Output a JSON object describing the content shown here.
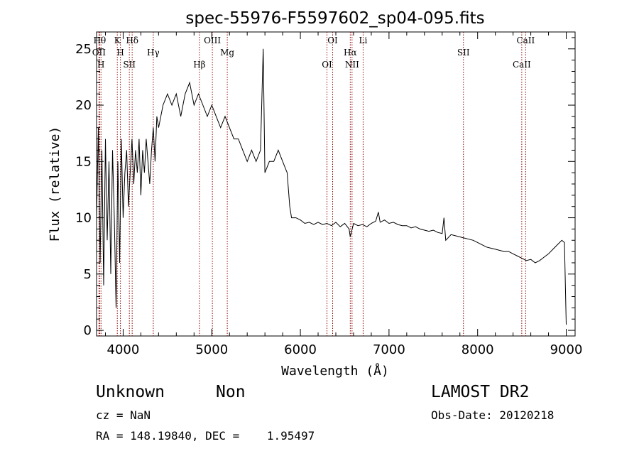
{
  "chart_data": {
    "type": "line",
    "title": "spec-55976-F5597602_sp04-095.fits",
    "xlabel": "Wavelength (Å)",
    "ylabel": "Flux (relative)",
    "xlim": [
      3700,
      9100
    ],
    "ylim": [
      -0.5,
      26.5
    ],
    "x_ticks": [
      4000,
      5000,
      6000,
      7000,
      8000,
      9000
    ],
    "y_ticks": [
      0,
      5,
      10,
      15,
      20,
      25
    ],
    "grid": false,
    "legend": "none",
    "line_color": "#000000",
    "marker_color": "#8b0000",
    "series": [
      {
        "x": [
          3700,
          3720,
          3740,
          3760,
          3780,
          3800,
          3820,
          3840,
          3860,
          3880,
          3900,
          3920,
          3940,
          3960,
          3980,
          4000,
          4020,
          4040,
          4060,
          4080,
          4100,
          4120,
          4140,
          4160,
          4180,
          4200,
          4220,
          4240,
          4260,
          4280,
          4300,
          4320,
          4340,
          4360,
          4380,
          4400,
          4450,
          4500,
          4550,
          4600,
          4650,
          4700,
          4750,
          4800,
          4850,
          4900,
          4950,
          5000,
          5050,
          5100,
          5150,
          5200,
          5250,
          5300,
          5350,
          5400,
          5450,
          5500,
          5550,
          5580,
          5600,
          5650,
          5700,
          5750,
          5800,
          5850,
          5880,
          5900,
          5950,
          6000,
          6050,
          6100,
          6150,
          6200,
          6250,
          6300,
          6350,
          6400,
          6450,
          6500,
          6550,
          6563,
          6600,
          6650,
          6700,
          6750,
          6800,
          6850,
          6880,
          6900,
          6950,
          7000,
          7050,
          7100,
          7150,
          7200,
          7250,
          7300,
          7350,
          7400,
          7450,
          7500,
          7550,
          7600,
          7620,
          7640,
          7700,
          7750,
          7800,
          7850,
          7900,
          7950,
          8000,
          8050,
          8100,
          8150,
          8200,
          8250,
          8300,
          8350,
          8400,
          8450,
          8500,
          8550,
          8600,
          8650,
          8700,
          8750,
          8800,
          8850,
          8900,
          8950,
          8980,
          9000
        ],
        "y": [
          10,
          18,
          6,
          16,
          4,
          17,
          8,
          15,
          5,
          16,
          10,
          2,
          15,
          6,
          17,
          10,
          14,
          16,
          11,
          14,
          17,
          13,
          16,
          14,
          17,
          12,
          16,
          14,
          17,
          15,
          13,
          16,
          18,
          15,
          19,
          18,
          20,
          21,
          20,
          21,
          19,
          21,
          22,
          20,
          21,
          20,
          19,
          20,
          19,
          18,
          19,
          18,
          17,
          17,
          16,
          15,
          16,
          15,
          16,
          25,
          14,
          15,
          15,
          16,
          15,
          14,
          11,
          10,
          10,
          9.8,
          9.5,
          9.6,
          9.4,
          9.6,
          9.4,
          9.5,
          9.3,
          9.6,
          9.2,
          9.5,
          9.0,
          8.3,
          9.5,
          9.3,
          9.4,
          9.2,
          9.5,
          9.7,
          10.5,
          9.6,
          9.8,
          9.5,
          9.6,
          9.4,
          9.3,
          9.3,
          9.1,
          9.2,
          9.0,
          8.9,
          8.8,
          8.9,
          8.7,
          8.6,
          10.0,
          8.0,
          8.5,
          8.4,
          8.3,
          8.2,
          8.1,
          8.0,
          7.8,
          7.6,
          7.4,
          7.3,
          7.2,
          7.1,
          7.0,
          7.0,
          6.8,
          6.6,
          6.4,
          6.2,
          6.3,
          6.0,
          6.2,
          6.5,
          6.8,
          7.2,
          7.6,
          8.0,
          7.8,
          0.5
        ]
      }
    ],
    "lines": [
      {
        "x": 3735,
        "labels": [
          "Hθ"
        ]
      },
      {
        "x": 3727,
        "labels": [
          "OII"
        ]
      },
      {
        "x": 3750,
        "labels": [
          "H"
        ]
      },
      {
        "x": 3934,
        "labels": [
          "K"
        ]
      },
      {
        "x": 3969,
        "labels": [
          "H"
        ]
      },
      {
        "x": 4070,
        "labels": [
          "SII"
        ]
      },
      {
        "x": 4102,
        "labels": [
          "Hδ"
        ]
      },
      {
        "x": 4340,
        "labels": [
          "Hγ"
        ]
      },
      {
        "x": 4861,
        "labels": [
          "Hβ"
        ]
      },
      {
        "x": 5007,
        "labels": [
          "OIII"
        ]
      },
      {
        "x": 5175,
        "labels": [
          "Mg"
        ]
      },
      {
        "x": 6300,
        "labels": [
          "OI"
        ]
      },
      {
        "x": 6364,
        "labels": [
          "OI"
        ]
      },
      {
        "x": 6563,
        "labels": [
          "Hα"
        ]
      },
      {
        "x": 6583,
        "labels": [
          "NII"
        ]
      },
      {
        "x": 6708,
        "labels": [
          "Li"
        ]
      },
      {
        "x": 7840,
        "labels": [
          "SII"
        ]
      },
      {
        "x": 8498,
        "labels": [
          "CaII"
        ]
      },
      {
        "x": 8542,
        "labels": [
          "CaII"
        ]
      }
    ]
  },
  "info": {
    "object_class": "Unknown",
    "subclass": "Non",
    "survey": "LAMOST DR2",
    "cz": "cz = NaN",
    "obs_date": "Obs-Date: 20120218",
    "radec": "RA = 148.19840, DEC =    1.95497"
  }
}
